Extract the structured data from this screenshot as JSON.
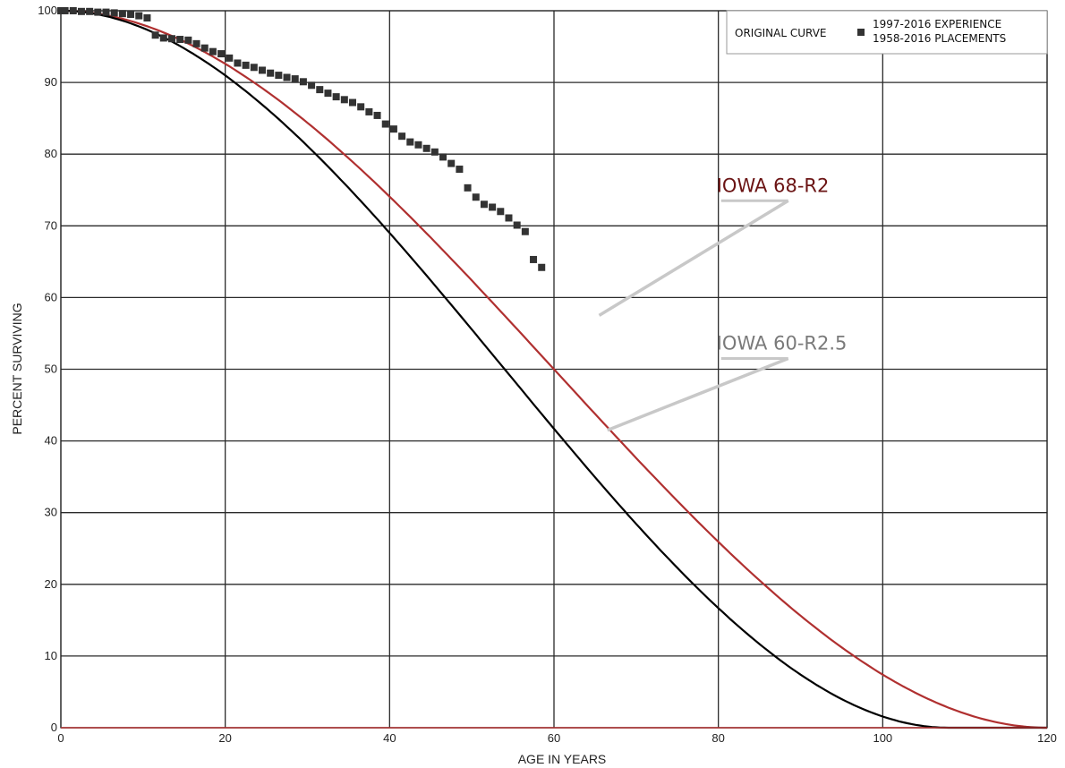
{
  "chart_data": {
    "type": "scatter",
    "xlabel": "AGE IN YEARS",
    "ylabel": "PERCENT SURVIVING",
    "xlim": [
      0,
      120
    ],
    "ylim": [
      0,
      100
    ],
    "x_ticks": [
      0,
      20,
      40,
      60,
      80,
      100,
      120
    ],
    "y_ticks": [
      0,
      10,
      20,
      30,
      40,
      50,
      60,
      70,
      80,
      90,
      100
    ],
    "grid": true,
    "legend_position": "top-right",
    "legend": {
      "label": "ORIGINAL CURVE",
      "entries": [
        "1997-2016 EXPERIENCE",
        "1958-2016 PLACEMENTS"
      ]
    },
    "series": [
      {
        "name": "ORIGINAL CURVE",
        "kind": "points",
        "color": "#333333",
        "points": [
          [
            0,
            100
          ],
          [
            0.5,
            100
          ],
          [
            1.5,
            100
          ],
          [
            2.5,
            99.9
          ],
          [
            3.5,
            99.9
          ],
          [
            4.5,
            99.8
          ],
          [
            5.5,
            99.8
          ],
          [
            6.5,
            99.7
          ],
          [
            7.5,
            99.6
          ],
          [
            8.5,
            99.5
          ],
          [
            9.5,
            99.3
          ],
          [
            10.5,
            99.0
          ],
          [
            11.5,
            96.6
          ],
          [
            12.5,
            96.2
          ],
          [
            13.5,
            96.1
          ],
          [
            14.5,
            96.0
          ],
          [
            15.5,
            95.9
          ],
          [
            16.5,
            95.4
          ],
          [
            17.5,
            94.8
          ],
          [
            18.5,
            94.3
          ],
          [
            19.5,
            94.0
          ],
          [
            20.5,
            93.4
          ],
          [
            21.5,
            92.7
          ],
          [
            22.5,
            92.4
          ],
          [
            23.5,
            92.1
          ],
          [
            24.5,
            91.7
          ],
          [
            25.5,
            91.3
          ],
          [
            26.5,
            91.0
          ],
          [
            27.5,
            90.7
          ],
          [
            28.5,
            90.5
          ],
          [
            29.5,
            90.1
          ],
          [
            30.5,
            89.6
          ],
          [
            31.5,
            89.0
          ],
          [
            32.5,
            88.5
          ],
          [
            33.5,
            88.0
          ],
          [
            34.5,
            87.6
          ],
          [
            35.5,
            87.2
          ],
          [
            36.5,
            86.6
          ],
          [
            37.5,
            85.9
          ],
          [
            38.5,
            85.4
          ],
          [
            39.5,
            84.2
          ],
          [
            40.5,
            83.5
          ],
          [
            41.5,
            82.5
          ],
          [
            42.5,
            81.7
          ],
          [
            43.5,
            81.3
          ],
          [
            44.5,
            80.8
          ],
          [
            45.5,
            80.3
          ],
          [
            46.5,
            79.6
          ],
          [
            47.5,
            78.7
          ],
          [
            48.5,
            77.9
          ],
          [
            49.5,
            75.3
          ],
          [
            50.5,
            74.0
          ],
          [
            51.5,
            73.0
          ],
          [
            52.5,
            72.6
          ],
          [
            53.5,
            72.0
          ],
          [
            54.5,
            71.1
          ],
          [
            55.5,
            70.1
          ],
          [
            56.5,
            69.2
          ],
          [
            57.5,
            65.3
          ],
          [
            58.5,
            64.2
          ]
        ]
      },
      {
        "name": "IOWA 68-R2",
        "kind": "curve",
        "color": "#b03030",
        "life": 68,
        "max_age": 120
      },
      {
        "name": "IOWA 60-R2.5",
        "kind": "curve",
        "color": "#000000",
        "life": 60,
        "max_age": 108
      }
    ],
    "annotations": [
      {
        "text": "IOWA 68-R2",
        "color": "#6b1414",
        "pointer_from": [
          88.5,
          73.5
        ],
        "pointer_to": [
          65.5,
          57.5
        ]
      },
      {
        "text": "IOWA 60-R2.5",
        "color": "#7a7a7a",
        "pointer_from": [
          88.5,
          51.5
        ],
        "pointer_to": [
          66.5,
          41.5
        ]
      }
    ]
  }
}
